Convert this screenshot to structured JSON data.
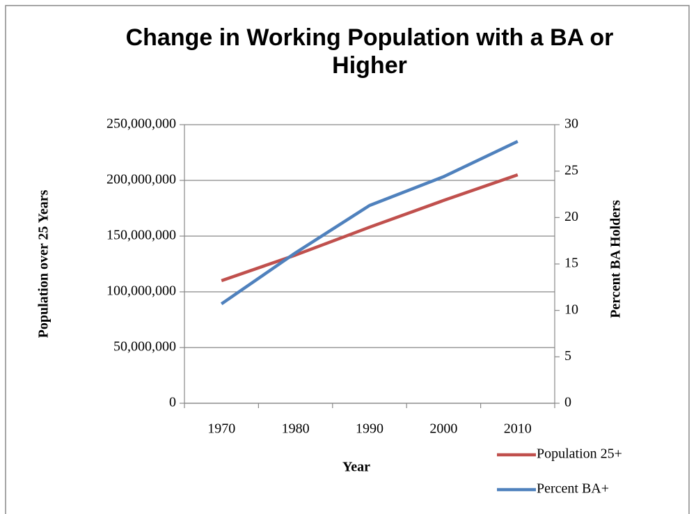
{
  "chart_data": {
    "type": "line",
    "title": "Change in Working Population with a BA or Higher",
    "x_label": "Year",
    "y_label": "Population over 25 Years",
    "y2_label": "Percent BA Holders",
    "categories": [
      "1970",
      "1980",
      "1990",
      "2000",
      "2010"
    ],
    "series": [
      {
        "name": "Population 25+",
        "color": "#c0504d",
        "values": [
          110000000,
          133000000,
          158000000,
          182000000,
          205000000
        ]
      },
      {
        "name": "Percent BA+",
        "color": "#4f81bd",
        "axis": "y2",
        "values": [
          10.7,
          16.2,
          21.3,
          24.4,
          28.2
        ]
      }
    ],
    "ylim": [
      0,
      250000000
    ],
    "yticks": [
      0,
      {
        "value": 50000000,
        "label": "50,000,000"
      },
      {
        "value": 100000000,
        "label": "100,000,000"
      },
      {
        "value": 150000000,
        "label": "150,000,000"
      },
      {
        "value": 200000000,
        "label": "200,000,000"
      },
      {
        "value": 250000000,
        "label": "250,000,000"
      }
    ],
    "y2lim": [
      0,
      30
    ],
    "y2ticks": [
      0,
      5,
      10,
      15,
      20,
      25,
      30
    ],
    "grid": true,
    "legend": "bottom-right"
  }
}
